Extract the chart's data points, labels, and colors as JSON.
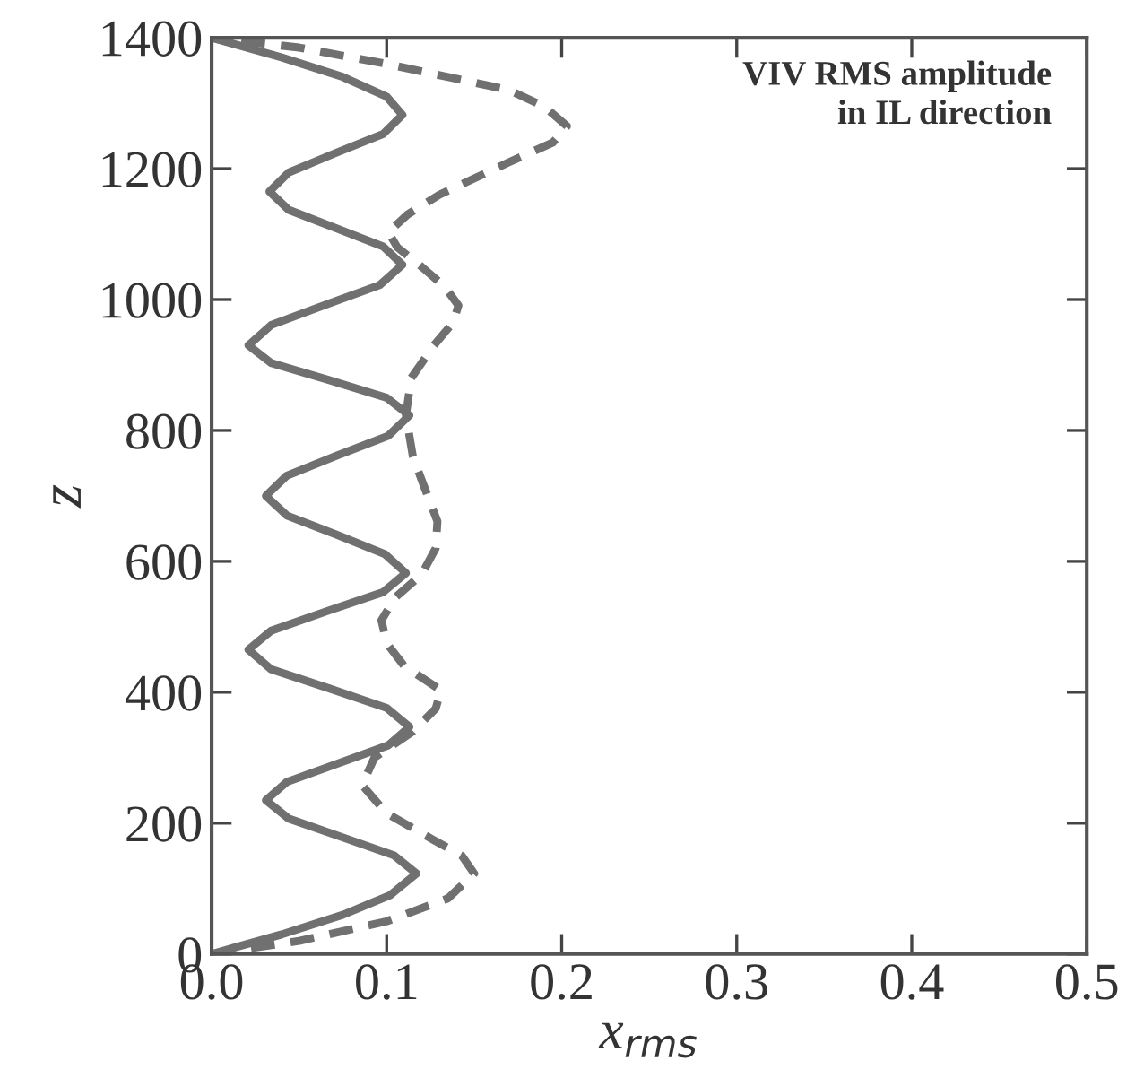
{
  "chart_data": {
    "type": "line",
    "xlabel": "x$_{rms}$",
    "ylabel": "z",
    "annotations": [
      "VIV RMS amplitude\nin IL direction"
    ],
    "xlim": [
      0,
      0.5
    ],
    "xticks": [
      {
        "value": 0,
        "label": "0.0"
      },
      0.1,
      0.2,
      0.3,
      0.4,
      0.5
    ],
    "ylim": [
      0,
      1400
    ],
    "yticks": [
      0,
      200,
      400,
      600,
      800,
      1000,
      1200,
      1400
    ],
    "grid": false,
    "legend": false,
    "marker": "none",
    "series": [
      {
        "color": "#707070",
        "line_style": "solid",
        "x": [
          0,
          0.04,
          0.075,
          0.102,
          0.117,
          0.104,
          0.074,
          0.044,
          0.031,
          0.043,
          0.072,
          0.101,
          0.113,
          0.1,
          0.067,
          0.034,
          0.021,
          0.034,
          0.066,
          0.098,
          0.111,
          0.099,
          0.071,
          0.043,
          0.031,
          0.043,
          0.072,
          0.101,
          0.113,
          0.1,
          0.067,
          0.034,
          0.021,
          0.034,
          0.065,
          0.096,
          0.109,
          0.098,
          0.071,
          0.044,
          0.033,
          0.044,
          0.071,
          0.098,
          0.109,
          0.1,
          0.075,
          0.04,
          0
        ],
        "values": [
          0,
          30,
          60,
          90,
          123,
          151,
          179,
          207,
          235,
          263,
          291,
          319,
          347,
          376,
          406,
          435,
          465,
          494,
          524,
          553,
          582,
          611,
          641,
          670,
          700,
          731,
          762,
          792,
          823,
          850,
          877,
          903,
          930,
          961,
          992,
          1022,
          1053,
          1081,
          1109,
          1137,
          1165,
          1194,
          1224,
          1253,
          1282,
          1310,
          1340,
          1370,
          1400
        ]
      },
      {
        "color": "#707070",
        "line_style": "dashed",
        "x": [
          0,
          0.05,
          0.1,
          0.135,
          0.15,
          0.143,
          0.127,
          0.1,
          0.086,
          0.093,
          0.115,
          0.128,
          0.131,
          0.11,
          0.1,
          0.097,
          0.105,
          0.12,
          0.128,
          0.129,
          0.122,
          0.115,
          0.111,
          0.114,
          0.127,
          0.138,
          0.141,
          0.133,
          0.12,
          0.106,
          0.101,
          0.112,
          0.13,
          0.17,
          0.195,
          0.203,
          0.19,
          0.17,
          0.1,
          0.05,
          0
        ],
        "values": [
          0,
          20,
          50,
          85,
          123,
          150,
          174,
          215,
          258,
          300,
          340,
          375,
          403,
          440,
          475,
          510,
          545,
          580,
          620,
          661,
          710,
          760,
          823,
          880,
          930,
          965,
          991,
          1020,
          1050,
          1080,
          1103,
          1130,
          1160,
          1210,
          1240,
          1265,
          1295,
          1320,
          1360,
          1385,
          1400
        ]
      }
    ]
  }
}
